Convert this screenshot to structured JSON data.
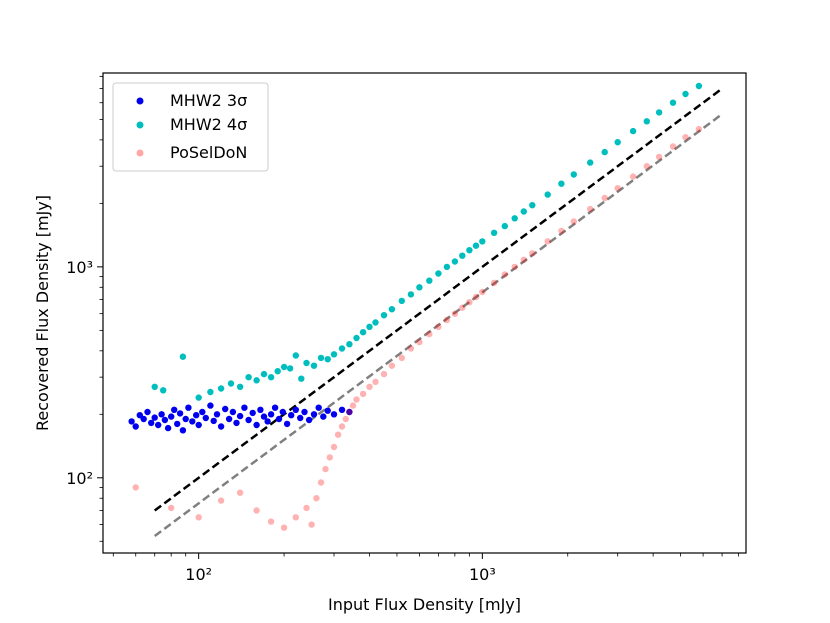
{
  "chart_data": {
    "type": "scatter",
    "xlabel": "Input Flux Density [mJy]",
    "ylabel": "Recovered Flux Density [mJy]",
    "xscale": "log",
    "yscale": "log",
    "xlim": [
      46,
      8500
    ],
    "ylim": [
      44,
      8300
    ],
    "x_major_ticks": [
      {
        "value": 100,
        "label": "10²"
      },
      {
        "value": 1000,
        "label": "10³"
      }
    ],
    "y_major_ticks": [
      {
        "value": 100,
        "label": "10²"
      },
      {
        "value": 1000,
        "label": "10³"
      }
    ],
    "grid": false,
    "legend_position": "top-left",
    "series": [
      {
        "name": "MHW2 3σ",
        "color": "#0000ee",
        "alpha": 1.0,
        "points": [
          [
            58,
            185
          ],
          [
            60,
            175
          ],
          [
            62,
            198
          ],
          [
            64,
            190
          ],
          [
            66,
            205
          ],
          [
            68,
            182
          ],
          [
            70,
            193
          ],
          [
            72,
            178
          ],
          [
            74,
            200
          ],
          [
            76,
            188
          ],
          [
            78,
            172
          ],
          [
            80,
            195
          ],
          [
            82,
            210
          ],
          [
            84,
            180
          ],
          [
            86,
            202
          ],
          [
            88,
            168
          ],
          [
            90,
            190
          ],
          [
            92,
            215
          ],
          [
            95,
            185
          ],
          [
            98,
            198
          ],
          [
            100,
            178
          ],
          [
            103,
            205
          ],
          [
            106,
            192
          ],
          [
            110,
            220
          ],
          [
            113,
            186
          ],
          [
            116,
            200
          ],
          [
            120,
            175
          ],
          [
            124,
            212
          ],
          [
            128,
            190
          ],
          [
            132,
            205
          ],
          [
            136,
            182
          ],
          [
            140,
            196
          ],
          [
            145,
            215
          ],
          [
            150,
            188
          ],
          [
            155,
            203
          ],
          [
            160,
            178
          ],
          [
            165,
            210
          ],
          [
            170,
            195
          ],
          [
            175,
            185
          ],
          [
            180,
            200
          ],
          [
            186,
            215
          ],
          [
            192,
            190
          ],
          [
            198,
            205
          ],
          [
            205,
            180
          ],
          [
            212,
            198
          ],
          [
            220,
            210
          ],
          [
            228,
            192
          ],
          [
            236,
            205
          ],
          [
            245,
            188
          ],
          [
            255,
            200
          ],
          [
            265,
            215
          ],
          [
            275,
            195
          ],
          [
            285,
            208
          ],
          [
            300,
            200
          ],
          [
            320,
            210
          ],
          [
            340,
            205
          ]
        ]
      },
      {
        "name": "MHW2 4σ",
        "color": "#00bebe",
        "alpha": 1.0,
        "points": [
          [
            70,
            270
          ],
          [
            75,
            260
          ],
          [
            88,
            375
          ],
          [
            100,
            240
          ],
          [
            110,
            255
          ],
          [
            120,
            265
          ],
          [
            130,
            280
          ],
          [
            140,
            270
          ],
          [
            150,
            300
          ],
          [
            160,
            290
          ],
          [
            170,
            310
          ],
          [
            180,
            300
          ],
          [
            190,
            320
          ],
          [
            200,
            335
          ],
          [
            210,
            330
          ],
          [
            220,
            380
          ],
          [
            230,
            295
          ],
          [
            240,
            350
          ],
          [
            255,
            340
          ],
          [
            270,
            370
          ],
          [
            285,
            365
          ],
          [
            300,
            385
          ],
          [
            320,
            410
          ],
          [
            340,
            430
          ],
          [
            360,
            460
          ],
          [
            380,
            490
          ],
          [
            400,
            520
          ],
          [
            420,
            545
          ],
          [
            450,
            590
          ],
          [
            480,
            630
          ],
          [
            520,
            690
          ],
          [
            560,
            740
          ],
          [
            600,
            800
          ],
          [
            650,
            860
          ],
          [
            700,
            930
          ],
          [
            750,
            1000
          ],
          [
            800,
            1060
          ],
          [
            850,
            1130
          ],
          [
            900,
            1200
          ],
          [
            950,
            1260
          ],
          [
            1000,
            1320
          ],
          [
            1100,
            1450
          ],
          [
            1200,
            1560
          ],
          [
            1300,
            1700
          ],
          [
            1400,
            1830
          ],
          [
            1500,
            1960
          ],
          [
            1700,
            2200
          ],
          [
            1900,
            2480
          ],
          [
            2100,
            2740
          ],
          [
            2400,
            3120
          ],
          [
            2700,
            3500
          ],
          [
            3000,
            3900
          ],
          [
            3400,
            4400
          ],
          [
            3800,
            4900
          ],
          [
            4200,
            5400
          ],
          [
            4700,
            6000
          ],
          [
            5200,
            6600
          ],
          [
            5800,
            7200
          ]
        ]
      },
      {
        "name": "PoSelDoN",
        "color": "#ff0000",
        "alpha": 0.3,
        "points": [
          [
            60,
            90
          ],
          [
            80,
            72
          ],
          [
            100,
            65
          ],
          [
            120,
            78
          ],
          [
            140,
            85
          ],
          [
            160,
            70
          ],
          [
            180,
            62
          ],
          [
            200,
            58
          ],
          [
            220,
            65
          ],
          [
            240,
            72
          ],
          [
            250,
            60
          ],
          [
            260,
            80
          ],
          [
            270,
            95
          ],
          [
            280,
            110
          ],
          [
            290,
            125
          ],
          [
            300,
            140
          ],
          [
            310,
            160
          ],
          [
            320,
            175
          ],
          [
            330,
            190
          ],
          [
            340,
            205
          ],
          [
            350,
            220
          ],
          [
            360,
            235
          ],
          [
            380,
            250
          ],
          [
            400,
            270
          ],
          [
            420,
            285
          ],
          [
            450,
            310
          ],
          [
            480,
            340
          ],
          [
            520,
            370
          ],
          [
            560,
            410
          ],
          [
            600,
            440
          ],
          [
            650,
            480
          ],
          [
            700,
            520
          ],
          [
            750,
            560
          ],
          [
            800,
            600
          ],
          [
            850,
            640
          ],
          [
            900,
            680
          ],
          [
            950,
            720
          ],
          [
            1000,
            760
          ],
          [
            1100,
            840
          ],
          [
            1200,
            920
          ],
          [
            1300,
            1000
          ],
          [
            1400,
            1080
          ],
          [
            1500,
            1160
          ],
          [
            1700,
            1320
          ],
          [
            1900,
            1480
          ],
          [
            2100,
            1640
          ],
          [
            2400,
            1880
          ],
          [
            2700,
            2120
          ],
          [
            3000,
            2360
          ],
          [
            3400,
            2680
          ],
          [
            3800,
            3000
          ],
          [
            4200,
            3320
          ],
          [
            4700,
            3720
          ],
          [
            5200,
            4120
          ],
          [
            5800,
            4500
          ]
        ]
      }
    ],
    "reference_lines": [
      {
        "style": "dashed",
        "color": "#000000",
        "x": [
          70,
          7000
        ],
        "y": [
          70,
          7000
        ]
      },
      {
        "style": "dashed",
        "color": "#808080",
        "x": [
          70,
          7000
        ],
        "y": [
          53,
          5300
        ]
      }
    ]
  }
}
